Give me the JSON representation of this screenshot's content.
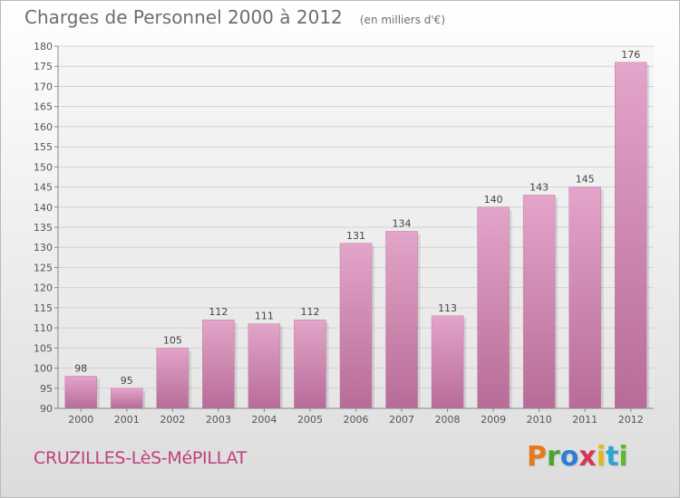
{
  "header": {
    "title": "Charges de Personnel 2000 à 2012",
    "subtitle": "(en milliers d'€)"
  },
  "footer": {
    "commune": "CRUZILLES-LèS-MéPILLAT",
    "logo_letters": [
      "P",
      "r",
      "o",
      "x",
      "i",
      "t",
      "i"
    ],
    "logo_colors": [
      "#e37b1c",
      "#4aa52e",
      "#2e7fd4",
      "#d6365a",
      "#e0b91a",
      "#2ea3d6",
      "#5eb830"
    ]
  },
  "chart_data": {
    "type": "bar",
    "categories": [
      "2000",
      "2001",
      "2002",
      "2003",
      "2004",
      "2005",
      "2006",
      "2007",
      "2008",
      "2009",
      "2010",
      "2011",
      "2012"
    ],
    "values": [
      98,
      95,
      105,
      112,
      111,
      112,
      131,
      134,
      113,
      140,
      143,
      145,
      176
    ],
    "title": "Charges de Personnel 2000 à 2012",
    "subtitle": "(en milliers d'€)",
    "ylim": [
      90,
      180
    ],
    "yticks": [
      90,
      95,
      100,
      105,
      110,
      115,
      120,
      125,
      130,
      135,
      140,
      145,
      150,
      155,
      160,
      165,
      170,
      175,
      180
    ],
    "grid": true,
    "bar_color": "#d98cb6"
  }
}
